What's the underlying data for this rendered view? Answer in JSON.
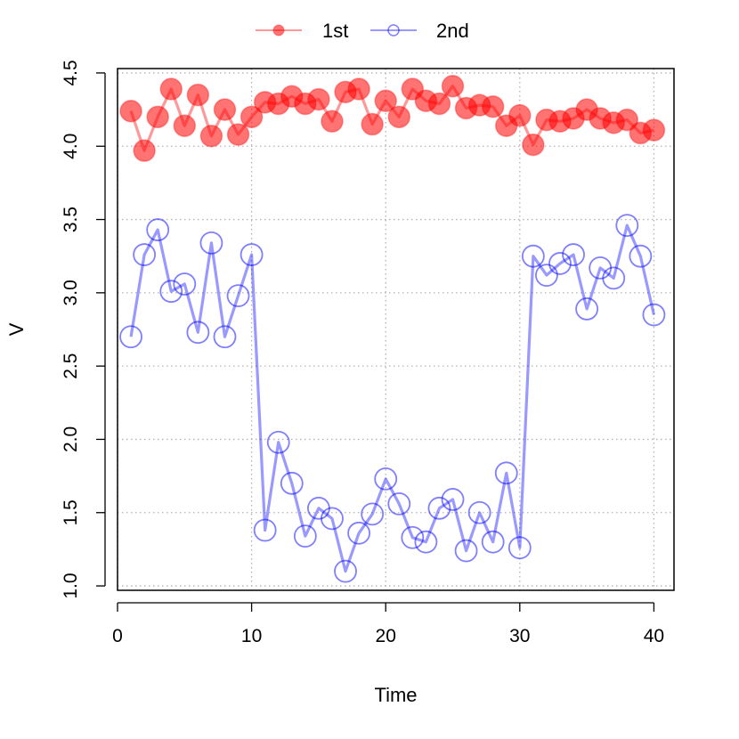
{
  "chart_data": {
    "type": "line",
    "xlabel": "Time",
    "ylabel": "V",
    "xlim": [
      0,
      41.5
    ],
    "ylim": [
      0.97,
      4.53
    ],
    "x_ticks": [
      0,
      10,
      20,
      30,
      40
    ],
    "y_ticks": [
      1.0,
      1.5,
      2.0,
      2.5,
      3.0,
      3.5,
      4.0,
      4.5
    ],
    "grid": true,
    "legend_position": "top-center",
    "x": [
      1,
      2,
      3,
      4,
      5,
      6,
      7,
      8,
      9,
      10,
      11,
      12,
      13,
      14,
      15,
      16,
      17,
      18,
      19,
      20,
      21,
      22,
      23,
      24,
      25,
      26,
      27,
      28,
      29,
      30,
      31,
      32,
      33,
      34,
      35,
      36,
      37,
      38,
      39,
      40
    ],
    "series": [
      {
        "name": "1st",
        "color": "#ff0000",
        "marker": "filled-circle",
        "values": [
          4.24,
          3.97,
          4.2,
          4.39,
          4.14,
          4.35,
          4.07,
          4.25,
          4.08,
          4.2,
          4.3,
          4.29,
          4.34,
          4.29,
          4.32,
          4.17,
          4.37,
          4.39,
          4.15,
          4.31,
          4.2,
          4.39,
          4.31,
          4.29,
          4.41,
          4.26,
          4.28,
          4.27,
          4.14,
          4.21,
          4.01,
          4.18,
          4.17,
          4.19,
          4.25,
          4.19,
          4.16,
          4.18,
          4.09,
          4.11
        ]
      },
      {
        "name": "2nd",
        "color": "#0000ff",
        "marker": "open-circle",
        "values": [
          2.7,
          3.26,
          3.43,
          3.01,
          3.06,
          2.73,
          3.34,
          2.7,
          2.98,
          3.26,
          1.38,
          1.98,
          1.7,
          1.34,
          1.53,
          1.46,
          1.1,
          1.36,
          1.49,
          1.73,
          1.56,
          1.33,
          1.3,
          1.53,
          1.59,
          1.24,
          1.5,
          1.3,
          1.77,
          1.26,
          3.25,
          3.12,
          3.2,
          3.26,
          2.89,
          3.17,
          3.1,
          3.46,
          3.25,
          2.85
        ]
      }
    ]
  }
}
